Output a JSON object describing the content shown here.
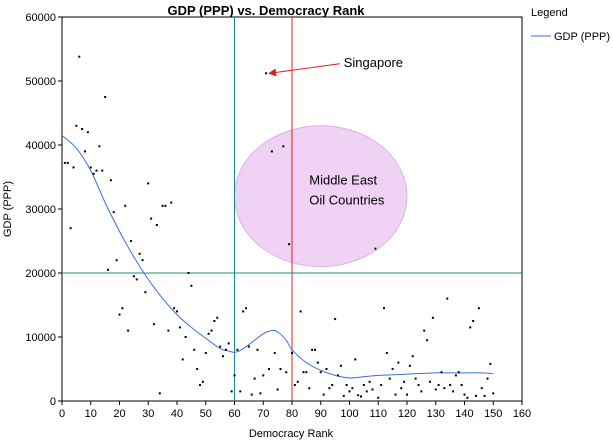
{
  "chart_data": {
    "type": "scatter",
    "title": "GDP (PPP) vs. Democracy Rank",
    "xlabel": "Democracy Rank",
    "ylabel": "GDP (PPP)",
    "xlim": [
      0,
      160
    ],
    "ylim": [
      0,
      60000
    ],
    "xticks": [
      "0",
      "10",
      "20",
      "30",
      "40",
      "50",
      "60",
      "70",
      "80",
      "90",
      "100",
      "110",
      "120",
      "130",
      "140",
      "150",
      "160"
    ],
    "yticks": [
      "0",
      "10000",
      "20000",
      "30000",
      "40000",
      "50000",
      "60000"
    ],
    "grid": false,
    "legend": {
      "title": "Legend",
      "placement": "right",
      "entries": [
        {
          "label": "GDP (PPP)",
          "color": "#3a6fe0"
        }
      ]
    },
    "reference_lines": [
      {
        "orientation": "vertical",
        "value": 60,
        "color": "#1a8a8a"
      },
      {
        "orientation": "vertical",
        "value": 80,
        "color": "#e02020"
      },
      {
        "orientation": "horizontal",
        "value": 20000,
        "color": "#1a8a8a"
      }
    ],
    "highlight_ellipse": {
      "cx": 90,
      "cy": 32000,
      "rx": 30,
      "ry": 11000,
      "fill": "#f0d2f5",
      "stroke": "#d9b4e6"
    },
    "annotations": [
      {
        "text": "Singapore",
        "point": [
          71,
          51200
        ],
        "text_at": [
          98,
          53000
        ],
        "arrow_color": "#e02020"
      },
      {
        "text": "Middle East",
        "at": [
          86,
          33800
        ]
      },
      {
        "text": "Oil Countries",
        "at": [
          86,
          30700
        ]
      }
    ],
    "trend_line": {
      "name": "GDP (PPP)",
      "color": "#3a6fe0",
      "x": [
        0,
        5,
        10,
        15,
        20,
        25,
        30,
        35,
        40,
        45,
        50,
        55,
        58,
        60,
        62,
        65,
        70,
        73,
        75,
        78,
        80,
        85,
        90,
        95,
        100,
        105,
        110,
        115,
        120,
        125,
        130,
        135,
        140,
        145,
        150
      ],
      "y": [
        41500,
        39500,
        36000,
        31000,
        26500,
        22500,
        19000,
        16000,
        13500,
        11500,
        9800,
        8200,
        7800,
        7600,
        7900,
        8800,
        10500,
        11000,
        10800,
        9500,
        8000,
        6000,
        4800,
        4000,
        3600,
        3800,
        4000,
        4100,
        4200,
        4300,
        4400,
        4400,
        4400,
        4400,
        4300
      ]
    },
    "points": [
      [
        1,
        37200
      ],
      [
        2,
        37200
      ],
      [
        3,
        27000
      ],
      [
        4,
        36500
      ],
      [
        5,
        43000
      ],
      [
        6,
        53800
      ],
      [
        7,
        42500
      ],
      [
        8,
        39000
      ],
      [
        9,
        42000
      ],
      [
        10,
        36500
      ],
      [
        11,
        35500
      ],
      [
        12,
        36000
      ],
      [
        13,
        39800
      ],
      [
        14,
        36000
      ],
      [
        15,
        47500
      ],
      [
        16,
        20500
      ],
      [
        17,
        34500
      ],
      [
        18,
        29500
      ],
      [
        19,
        22000
      ],
      [
        20,
        13500
      ],
      [
        21,
        14500
      ],
      [
        22,
        30500
      ],
      [
        23,
        11000
      ],
      [
        24,
        25000
      ],
      [
        25,
        19500
      ],
      [
        26,
        19000
      ],
      [
        27,
        23000
      ],
      [
        28,
        22000
      ],
      [
        29,
        17000
      ],
      [
        30,
        34000
      ],
      [
        31,
        28500
      ],
      [
        32,
        12000
      ],
      [
        33,
        27500
      ],
      [
        34,
        1200
      ],
      [
        35,
        30500
      ],
      [
        36,
        30500
      ],
      [
        37,
        11000
      ],
      [
        38,
        31000
      ],
      [
        39,
        14500
      ],
      [
        40,
        14000
      ],
      [
        41,
        11500
      ],
      [
        42,
        6500
      ],
      [
        43,
        10000
      ],
      [
        44,
        20000
      ],
      [
        45,
        18000
      ],
      [
        46,
        8000
      ],
      [
        47,
        5000
      ],
      [
        48,
        2500
      ],
      [
        49,
        3000
      ],
      [
        50,
        7500
      ],
      [
        51,
        10500
      ],
      [
        52,
        11000
      ],
      [
        53,
        12500
      ],
      [
        54,
        13000
      ],
      [
        55,
        8500
      ],
      [
        56,
        7000
      ],
      [
        57,
        8000
      ],
      [
        58,
        9000
      ],
      [
        59,
        1500
      ],
      [
        60,
        4000
      ],
      [
        61,
        8000
      ],
      [
        62,
        1500
      ],
      [
        63,
        14000
      ],
      [
        64,
        14500
      ],
      [
        65,
        8500
      ],
      [
        66,
        1000
      ],
      [
        67,
        3500
      ],
      [
        68,
        8000
      ],
      [
        69,
        1200
      ],
      [
        70,
        4000
      ],
      [
        71,
        51200
      ],
      [
        72,
        5000
      ],
      [
        73,
        39000
      ],
      [
        74,
        7500
      ],
      [
        75,
        1800
      ],
      [
        76,
        5000
      ],
      [
        77,
        39800
      ],
      [
        78,
        4500
      ],
      [
        79,
        24500
      ],
      [
        80,
        7500
      ],
      [
        81,
        2500
      ],
      [
        82,
        3000
      ],
      [
        83,
        14000
      ],
      [
        84,
        4500
      ],
      [
        85,
        4500
      ],
      [
        86,
        2000
      ],
      [
        87,
        8000
      ],
      [
        88,
        8000
      ],
      [
        89,
        6000
      ],
      [
        90,
        4500
      ],
      [
        91,
        1000
      ],
      [
        92,
        5000
      ],
      [
        93,
        2000
      ],
      [
        94,
        2500
      ],
      [
        95,
        12800
      ],
      [
        96,
        4000
      ],
      [
        97,
        5500
      ],
      [
        98,
        800
      ],
      [
        99,
        2500
      ],
      [
        100,
        1500
      ],
      [
        101,
        2000
      ],
      [
        102,
        6500
      ],
      [
        103,
        900
      ],
      [
        104,
        700
      ],
      [
        105,
        2500
      ],
      [
        106,
        1500
      ],
      [
        107,
        3000
      ],
      [
        108,
        1800
      ],
      [
        109,
        23800
      ],
      [
        110,
        500
      ],
      [
        111,
        2500
      ],
      [
        112,
        14500
      ],
      [
        113,
        7500
      ],
      [
        114,
        3500
      ],
      [
        115,
        5000
      ],
      [
        116,
        1000
      ],
      [
        117,
        6000
      ],
      [
        118,
        2000
      ],
      [
        119,
        3000
      ],
      [
        120,
        1000
      ],
      [
        121,
        5500
      ],
      [
        122,
        7000
      ],
      [
        123,
        3500
      ],
      [
        124,
        2500
      ],
      [
        125,
        1500
      ],
      [
        126,
        11000
      ],
      [
        127,
        9500
      ],
      [
        128,
        3000
      ],
      [
        129,
        13000
      ],
      [
        130,
        1800
      ],
      [
        131,
        2500
      ],
      [
        132,
        4500
      ],
      [
        133,
        2000
      ],
      [
        134,
        16000
      ],
      [
        135,
        2500
      ],
      [
        136,
        1500
      ],
      [
        137,
        4000
      ],
      [
        138,
        4500
      ],
      [
        139,
        2500
      ],
      [
        140,
        1000
      ],
      [
        141,
        500
      ],
      [
        142,
        11500
      ],
      [
        143,
        12500
      ],
      [
        144,
        800
      ],
      [
        145,
        14500
      ],
      [
        146,
        2000
      ],
      [
        147,
        800
      ],
      [
        148,
        3500
      ],
      [
        149,
        5800
      ],
      [
        150,
        1200
      ]
    ]
  }
}
